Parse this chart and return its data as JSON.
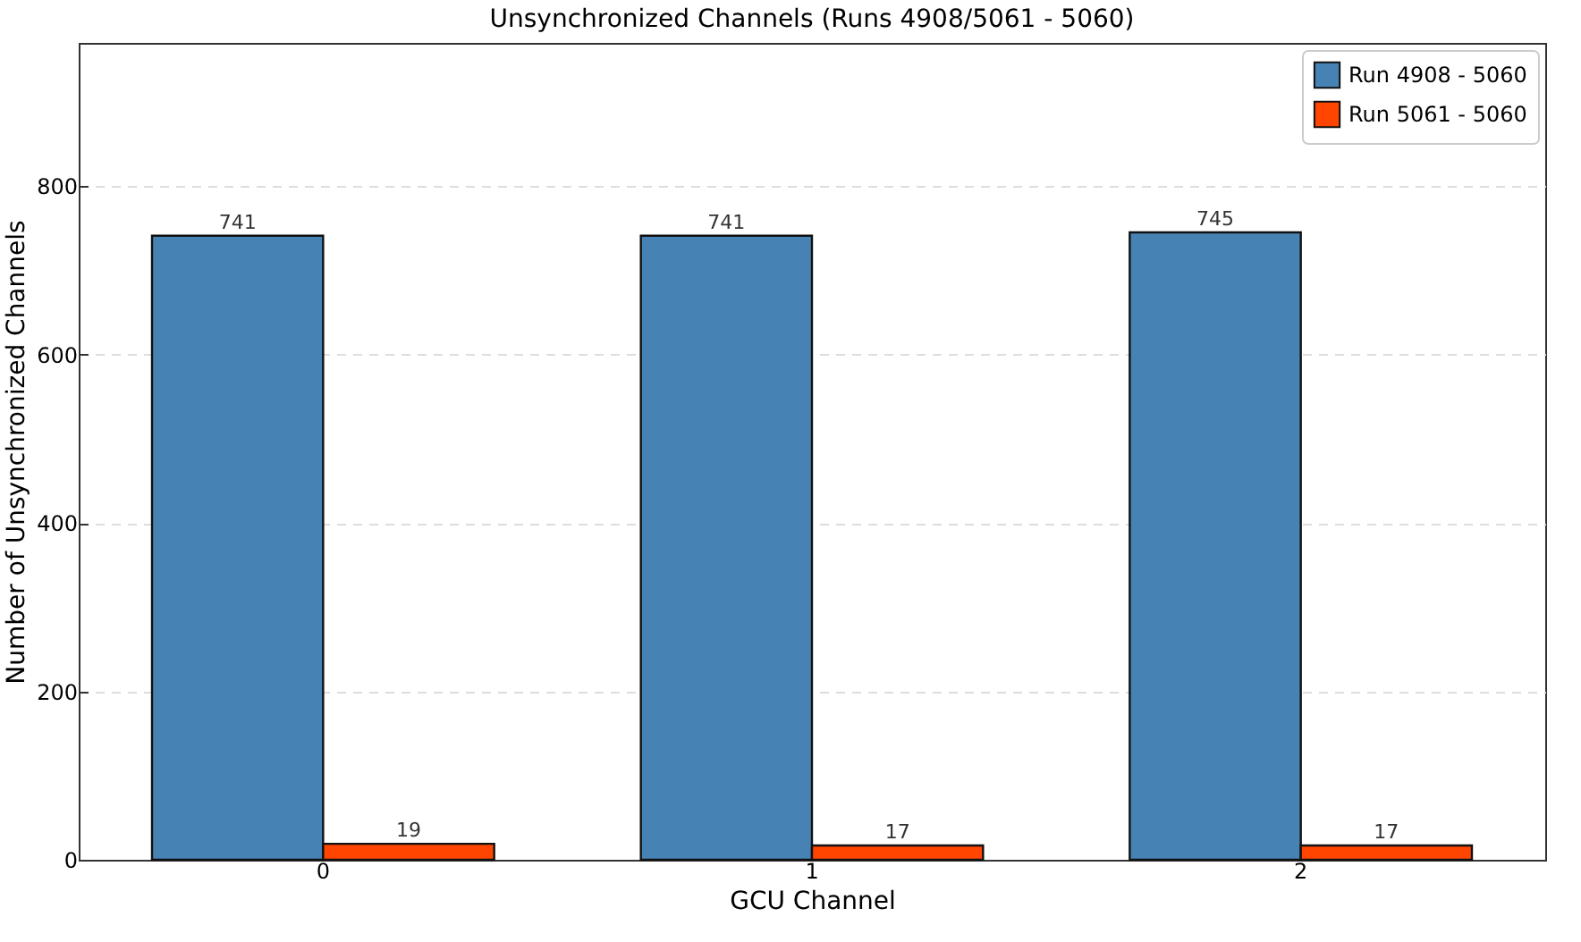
{
  "chart_data": {
    "type": "bar",
    "title": "Unsynchronized Channels (Runs 4908/5061 - 5060)",
    "xlabel": "GCU Channel",
    "ylabel": "Number of Unsynchronized Channels",
    "categories": [
      "0",
      "1",
      "2"
    ],
    "series": [
      {
        "name": "Run 4908 - 5060",
        "color": "#4682b4",
        "values": [
          741,
          741,
          745
        ]
      },
      {
        "name": "Run 5061 - 5060",
        "color": "#ff4500",
        "values": [
          19,
          17,
          17
        ]
      }
    ],
    "ylim": [
      0,
      970
    ],
    "yticks": [
      0,
      200,
      400,
      600,
      800
    ],
    "grid": "y",
    "legend": "top right",
    "data_labels": true
  }
}
